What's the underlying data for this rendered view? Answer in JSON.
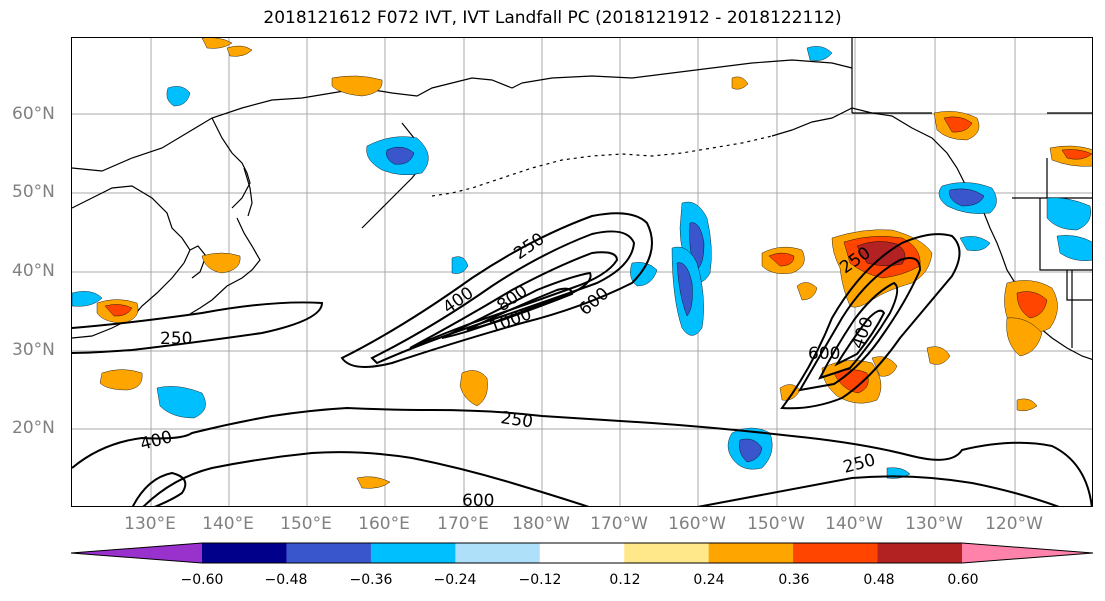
{
  "title": "2018121612 F072 IVT, IVT Landfall PC (2018121912 - 2018122112)",
  "latitude_labels": [
    "60°N",
    "50°N",
    "40°N",
    "30°N",
    "20°N"
  ],
  "longitude_labels": [
    "130°E",
    "140°E",
    "150°E",
    "160°E",
    "170°E",
    "180°W",
    "170°W",
    "160°W",
    "150°W",
    "140°W",
    "130°W",
    "120°W"
  ],
  "contour_labels": [
    "250",
    "400",
    "800",
    "1000",
    "600",
    "250",
    "600",
    "400",
    "250",
    "400",
    "250",
    "600",
    "250"
  ],
  "colorbar": {
    "colors": [
      "#9932cc",
      "#00008b",
      "#3a56cc",
      "#00bfff",
      "#afe0fa",
      "#ffffff",
      "#ffe88a",
      "#ffa500",
      "#ff4500",
      "#b22222",
      "#ff82ab"
    ],
    "tick_labels": [
      "−0.60",
      "−0.48",
      "−0.36",
      "−0.24",
      "−0.12",
      "0.12",
      "0.24",
      "0.36",
      "0.48",
      "0.60"
    ]
  }
}
